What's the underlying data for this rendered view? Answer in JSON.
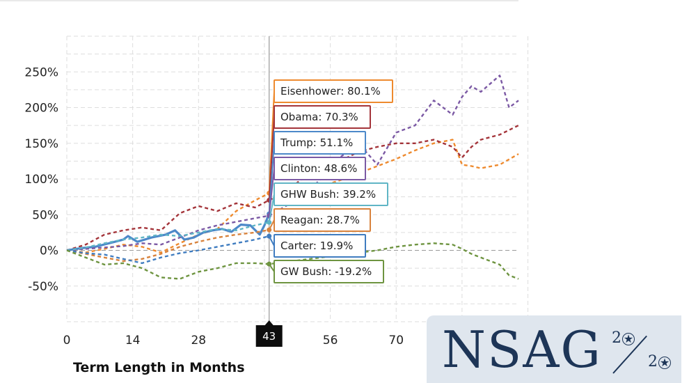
{
  "chart_data": {
    "type": "line",
    "title": "",
    "xlabel": "Term Length in Months",
    "ylabel": "",
    "xlim": [
      0,
      96
    ],
    "ylim": [
      -100,
      300
    ],
    "x_ticks": [
      0,
      14,
      28,
      42,
      56,
      70
    ],
    "x_tick_labels": [
      "0",
      "14",
      "28",
      "",
      "56",
      "70"
    ],
    "y_ticks": [
      -50,
      0,
      50,
      100,
      150,
      200,
      250
    ],
    "y_tick_labels": [
      "-50%",
      "0%",
      "50%",
      "100%",
      "150%",
      "200%",
      "250%"
    ],
    "crosshair_x": 43,
    "crosshair_label": "43",
    "series": [
      {
        "name": "Eisenhower",
        "color": "#ee8a2e",
        "dash": true,
        "tooltip": "Eisenhower: 80.1%",
        "value_at_crosshair": 80.1,
        "points": [
          [
            0,
            0
          ],
          [
            4,
            -3
          ],
          [
            8,
            2
          ],
          [
            12,
            8
          ],
          [
            16,
            5
          ],
          [
            20,
            -3
          ],
          [
            24,
            10
          ],
          [
            28,
            22
          ],
          [
            32,
            30
          ],
          [
            36,
            55
          ],
          [
            40,
            70
          ],
          [
            43,
            80.1
          ],
          [
            46,
            72
          ],
          [
            50,
            78
          ],
          [
            54,
            90
          ],
          [
            58,
            98
          ],
          [
            62,
            108
          ],
          [
            66,
            118
          ],
          [
            70,
            128
          ],
          [
            74,
            140
          ],
          [
            78,
            150
          ],
          [
            82,
            155
          ],
          [
            84,
            120
          ],
          [
            86,
            118
          ],
          [
            88,
            115
          ],
          [
            92,
            120
          ],
          [
            96,
            135
          ]
        ]
      },
      {
        "name": "Obama",
        "color": "#a4343a",
        "dash": true,
        "tooltip": "Obama: 70.3%",
        "value_at_crosshair": 70.3,
        "points": [
          [
            0,
            0
          ],
          [
            4,
            8
          ],
          [
            8,
            22
          ],
          [
            12,
            28
          ],
          [
            16,
            32
          ],
          [
            20,
            28
          ],
          [
            24,
            52
          ],
          [
            28,
            62
          ],
          [
            32,
            55
          ],
          [
            36,
            66
          ],
          [
            40,
            60
          ],
          [
            43,
            70.3
          ],
          [
            46,
            80
          ],
          [
            50,
            100
          ],
          [
            54,
            112
          ],
          [
            58,
            125
          ],
          [
            62,
            138
          ],
          [
            66,
            145
          ],
          [
            70,
            150
          ],
          [
            74,
            150
          ],
          [
            78,
            155
          ],
          [
            82,
            145
          ],
          [
            84,
            130
          ],
          [
            86,
            145
          ],
          [
            88,
            155
          ],
          [
            92,
            162
          ],
          [
            96,
            175
          ]
        ]
      },
      {
        "name": "Trump",
        "color": "#4c88c9",
        "dash": false,
        "tooltip": "Trump: 51.1%",
        "value_at_crosshair": 51.1,
        "points": [
          [
            0,
            0
          ],
          [
            3,
            3
          ],
          [
            6,
            5
          ],
          [
            9,
            10
          ],
          [
            12,
            15
          ],
          [
            13,
            20
          ],
          [
            15,
            12
          ],
          [
            18,
            18
          ],
          [
            21,
            22
          ],
          [
            23,
            28
          ],
          [
            25,
            15
          ],
          [
            27,
            18
          ],
          [
            29,
            25
          ],
          [
            31,
            28
          ],
          [
            33,
            30
          ],
          [
            35,
            26
          ],
          [
            37,
            36
          ],
          [
            39,
            35
          ],
          [
            41,
            22
          ],
          [
            42,
            35
          ],
          [
            43,
            51.1
          ]
        ]
      },
      {
        "name": "Clinton",
        "color": "#7b59a4",
        "dash": true,
        "tooltip": "Clinton: 48.6%",
        "value_at_crosshair": 48.6,
        "points": [
          [
            0,
            0
          ],
          [
            4,
            2
          ],
          [
            8,
            4
          ],
          [
            12,
            6
          ],
          [
            16,
            10
          ],
          [
            20,
            8
          ],
          [
            24,
            18
          ],
          [
            28,
            28
          ],
          [
            32,
            35
          ],
          [
            36,
            40
          ],
          [
            40,
            45
          ],
          [
            43,
            48.6
          ],
          [
            46,
            60
          ],
          [
            50,
            75
          ],
          [
            54,
            100
          ],
          [
            58,
            130
          ],
          [
            62,
            150
          ],
          [
            66,
            120
          ],
          [
            70,
            165
          ],
          [
            74,
            175
          ],
          [
            78,
            210
          ],
          [
            82,
            190
          ],
          [
            84,
            215
          ],
          [
            86,
            230
          ],
          [
            88,
            222
          ],
          [
            92,
            245
          ],
          [
            94,
            200
          ],
          [
            96,
            210
          ]
        ]
      },
      {
        "name": "GHW Bush",
        "color": "#5fb5c5",
        "dash": true,
        "tooltip": "GHW Bush: 39.2%",
        "value_at_crosshair": 39.2,
        "points": [
          [
            0,
            0
          ],
          [
            4,
            4
          ],
          [
            8,
            10
          ],
          [
            12,
            15
          ],
          [
            16,
            18
          ],
          [
            20,
            22
          ],
          [
            24,
            20
          ],
          [
            28,
            25
          ],
          [
            32,
            30
          ],
          [
            36,
            28
          ],
          [
            40,
            35
          ],
          [
            43,
            39.2
          ]
        ]
      },
      {
        "name": "Reagan",
        "color": "#d8823c",
        "dash": true,
        "tooltip": "Reagan: 28.7%",
        "value_at_crosshair": 28.7,
        "points": [
          [
            0,
            0
          ],
          [
            4,
            -5
          ],
          [
            8,
            -10
          ],
          [
            12,
            -15
          ],
          [
            16,
            -12
          ],
          [
            20,
            -5
          ],
          [
            24,
            5
          ],
          [
            28,
            12
          ],
          [
            32,
            18
          ],
          [
            36,
            22
          ],
          [
            40,
            25
          ],
          [
            43,
            28.7
          ]
        ]
      },
      {
        "name": "Carter",
        "color": "#3f7cc0",
        "dash": true,
        "tooltip": "Carter: 19.9%",
        "value_at_crosshair": 19.9,
        "points": [
          [
            0,
            0
          ],
          [
            4,
            -4
          ],
          [
            8,
            -6
          ],
          [
            12,
            -12
          ],
          [
            16,
            -18
          ],
          [
            20,
            -10
          ],
          [
            24,
            -4
          ],
          [
            28,
            0
          ],
          [
            32,
            5
          ],
          [
            36,
            10
          ],
          [
            40,
            15
          ],
          [
            43,
            19.9
          ]
        ]
      },
      {
        "name": "GW Bush",
        "color": "#6e9440",
        "dash": true,
        "tooltip": "GW Bush: -19.2%",
        "value_at_crosshair": -19.2,
        "points": [
          [
            0,
            0
          ],
          [
            4,
            -10
          ],
          [
            8,
            -20
          ],
          [
            12,
            -18
          ],
          [
            16,
            -25
          ],
          [
            20,
            -38
          ],
          [
            24,
            -40
          ],
          [
            28,
            -30
          ],
          [
            32,
            -25
          ],
          [
            36,
            -18
          ],
          [
            40,
            -18
          ],
          [
            43,
            -19.2
          ],
          [
            48,
            -15
          ],
          [
            54,
            -10
          ],
          [
            60,
            -5
          ],
          [
            66,
            0
          ],
          [
            70,
            5
          ],
          [
            74,
            8
          ],
          [
            78,
            10
          ],
          [
            82,
            8
          ],
          [
            84,
            2
          ],
          [
            86,
            -5
          ],
          [
            88,
            -10
          ],
          [
            92,
            -20
          ],
          [
            94,
            -35
          ],
          [
            96,
            -40
          ]
        ]
      }
    ]
  },
  "logo": {
    "main": "NSAG",
    "sup": "2",
    "sub": "2"
  }
}
